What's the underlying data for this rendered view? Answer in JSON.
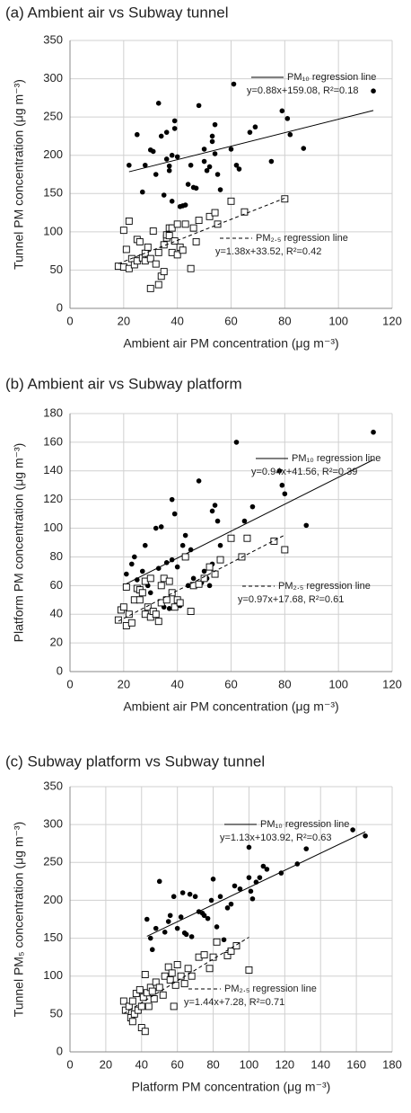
{
  "chart_data": [
    {
      "type": "scatter",
      "title": "(a) Ambient air vs Subway tunnel",
      "x_label": "Ambient air PM concentration (μg m⁻³)",
      "y_label": "Tunnel PM concentration (μg m⁻³)",
      "xlim": [
        0,
        120
      ],
      "xticks": [
        0,
        20,
        40,
        60,
        80,
        100,
        120
      ],
      "ylim": [
        0,
        350
      ],
      "yticks": [
        0,
        50,
        100,
        150,
        200,
        250,
        300,
        350
      ],
      "grid": true,
      "series": [
        {
          "name": "PM₁₀ regression line",
          "marker": "circle",
          "line_style": "solid",
          "color": "#000000",
          "fit": {
            "slope": 0.88,
            "intercept": 159.08,
            "label": "y=0.88x+159.08, R²=0.18"
          },
          "x": [
            22,
            25,
            27,
            28,
            30,
            31,
            32,
            33,
            34,
            35,
            36,
            36,
            37,
            37,
            38,
            38,
            39,
            39,
            40,
            41,
            42,
            43,
            44,
            45,
            46,
            47,
            48,
            50,
            50,
            51,
            52,
            53,
            53,
            54,
            54,
            55,
            56,
            60,
            61,
            62,
            63,
            67,
            69,
            75,
            79,
            81,
            82,
            87,
            113
          ],
          "values": [
            187,
            227,
            152,
            187,
            207,
            205,
            175,
            268,
            225,
            148,
            195,
            230,
            180,
            186,
            200,
            140,
            235,
            245,
            198,
            133,
            134,
            135,
            162,
            187,
            158,
            157,
            265,
            192,
            208,
            180,
            185,
            225,
            218,
            240,
            202,
            175,
            155,
            208,
            293,
            187,
            182,
            230,
            237,
            192,
            258,
            248,
            227,
            209,
            284
          ]
        },
        {
          "name": "PM₂.₅ regression line",
          "marker": "square",
          "line_style": "dashed",
          "color": "#000000",
          "fit": {
            "slope": 1.38,
            "intercept": 33.52,
            "label": "y=1.38x+33.52, R²=0.42"
          },
          "x": [
            18,
            20,
            20,
            21,
            22,
            22,
            23,
            24,
            25,
            25,
            26,
            27,
            28,
            28,
            29,
            30,
            30,
            31,
            32,
            33,
            33,
            34,
            35,
            35,
            36,
            36,
            37,
            37,
            38,
            38,
            39,
            40,
            40,
            41,
            42,
            43,
            45,
            46,
            47,
            48,
            52,
            54,
            55,
            60,
            65,
            80
          ],
          "values": [
            55,
            54,
            102,
            77,
            52,
            114,
            65,
            57,
            62,
            90,
            87,
            66,
            72,
            62,
            80,
            26,
            65,
            101,
            58,
            31,
            73,
            42,
            83,
            48,
            92,
            96,
            95,
            105,
            73,
            105,
            88,
            110,
            70,
            80,
            76,
            110,
            52,
            105,
            87,
            115,
            120,
            125,
            110,
            140,
            126,
            143
          ]
        }
      ]
    },
    {
      "type": "scatter",
      "title": "(b) Ambient air vs Subway platform",
      "x_label": "Ambient air PM concentration (μg m⁻³)",
      "y_label": "Platform PM concentration (μg m⁻³)",
      "xlim": [
        0,
        120
      ],
      "xticks": [
        0,
        20,
        40,
        60,
        80,
        100,
        120
      ],
      "ylim": [
        0,
        180
      ],
      "yticks": [
        0,
        20,
        40,
        60,
        80,
        100,
        120,
        140,
        160,
        180
      ],
      "grid": true,
      "series": [
        {
          "name": "PM₁₀ regression line",
          "marker": "circle",
          "line_style": "solid",
          "color": "#000000",
          "fit": {
            "slope": 0.94,
            "intercept": 41.56,
            "label": "y=0.94x+41.56, R²=0.39"
          },
          "x": [
            21,
            23,
            24,
            25,
            27,
            28,
            29,
            30,
            32,
            33,
            34,
            35,
            36,
            37,
            38,
            38,
            39,
            40,
            41,
            42,
            43,
            44,
            45,
            46,
            48,
            49,
            50,
            51,
            52,
            53,
            53,
            54,
            55,
            56,
            62,
            65,
            68,
            78,
            79,
            80,
            88,
            113
          ],
          "values": [
            68,
            75,
            80,
            64,
            70,
            88,
            60,
            55,
            100,
            72,
            101,
            45,
            76,
            44,
            78,
            120,
            110,
            73,
            46,
            88,
            95,
            60,
            85,
            65,
            133,
            62,
            70,
            65,
            60,
            75,
            112,
            116,
            105,
            88,
            160,
            105,
            115,
            140,
            130,
            124,
            102,
            167
          ]
        },
        {
          "name": "PM₂.₅ regression line",
          "marker": "square",
          "line_style": "dashed",
          "color": "#000000",
          "fit": {
            "slope": 0.97,
            "intercept": 17.68,
            "label": "y=0.97x+17.68, R²=0.61"
          },
          "x": [
            18,
            19,
            20,
            21,
            21,
            22,
            23,
            24,
            25,
            26,
            26,
            27,
            28,
            28,
            29,
            30,
            30,
            31,
            32,
            33,
            34,
            34,
            35,
            36,
            37,
            38,
            39,
            40,
            41,
            43,
            45,
            46,
            48,
            50,
            52,
            54,
            56,
            60,
            64,
            66,
            76,
            80
          ],
          "values": [
            36,
            43,
            45,
            32,
            59,
            40,
            34,
            50,
            58,
            57,
            50,
            55,
            40,
            63,
            45,
            38,
            65,
            42,
            40,
            35,
            48,
            60,
            65,
            50,
            63,
            55,
            45,
            50,
            48,
            80,
            42,
            60,
            61,
            65,
            73,
            68,
            78,
            93,
            80,
            93,
            91,
            85
          ]
        }
      ]
    },
    {
      "type": "scatter",
      "title": "(c) Subway platform vs Subway tunnel",
      "x_label": "Platform PM concentration (μg m⁻³)",
      "y_label": "Tunnel PM₅ concentration (μg m⁻³)",
      "xlim": [
        0,
        180
      ],
      "xticks": [
        0,
        20,
        40,
        60,
        80,
        100,
        120,
        140,
        160,
        180
      ],
      "ylim": [
        0,
        350
      ],
      "yticks": [
        0,
        50,
        100,
        150,
        200,
        250,
        300,
        350
      ],
      "grid": true,
      "series": [
        {
          "name": "PM₁₀ regression line",
          "marker": "circle",
          "line_style": "solid",
          "color": "#000000",
          "fit": {
            "slope": 1.13,
            "intercept": 103.92,
            "label": "y=1.13x+103.92, R²=0.63"
          },
          "x": [
            43,
            45,
            46,
            48,
            50,
            53,
            55,
            56,
            58,
            60,
            62,
            63,
            64,
            65,
            67,
            68,
            70,
            72,
            74,
            75,
            77,
            79,
            80,
            82,
            84,
            86,
            88,
            90,
            92,
            95,
            100,
            100,
            101,
            102,
            104,
            106,
            108,
            110,
            118,
            127,
            132,
            158,
            165
          ],
          "values": [
            175,
            150,
            135,
            163,
            225,
            158,
            172,
            180,
            205,
            163,
            178,
            210,
            157,
            155,
            208,
            152,
            205,
            185,
            183,
            180,
            176,
            200,
            228,
            165,
            205,
            148,
            190,
            195,
            219,
            215,
            230,
            270,
            212,
            202,
            224,
            230,
            245,
            241,
            236,
            248,
            268,
            293,
            285
          ]
        },
        {
          "name": "PM₂.₅ regression line",
          "marker": "square",
          "line_style": "dashed",
          "color": "#000000",
          "fit": {
            "slope": 1.44,
            "intercept": 7.28,
            "label": "y=1.44x+7.28, R²=0.71"
          },
          "x": [
            30,
            31,
            33,
            34,
            35,
            35,
            36,
            37,
            38,
            39,
            40,
            40,
            41,
            42,
            42,
            43,
            44,
            45,
            46,
            47,
            48,
            50,
            52,
            53,
            55,
            56,
            57,
            58,
            59,
            60,
            62,
            64,
            66,
            68,
            72,
            75,
            78,
            80,
            82,
            88,
            90,
            93,
            100
          ],
          "values": [
            67,
            55,
            60,
            45,
            40,
            67,
            50,
            77,
            55,
            82,
            32,
            60,
            72,
            27,
            102,
            78,
            60,
            85,
            80,
            70,
            92,
            85,
            75,
            100,
            112,
            95,
            104,
            60,
            88,
            115,
            100,
            90,
            110,
            100,
            125,
            128,
            110,
            125,
            145,
            127,
            133,
            140,
            108
          ]
        }
      ]
    }
  ]
}
